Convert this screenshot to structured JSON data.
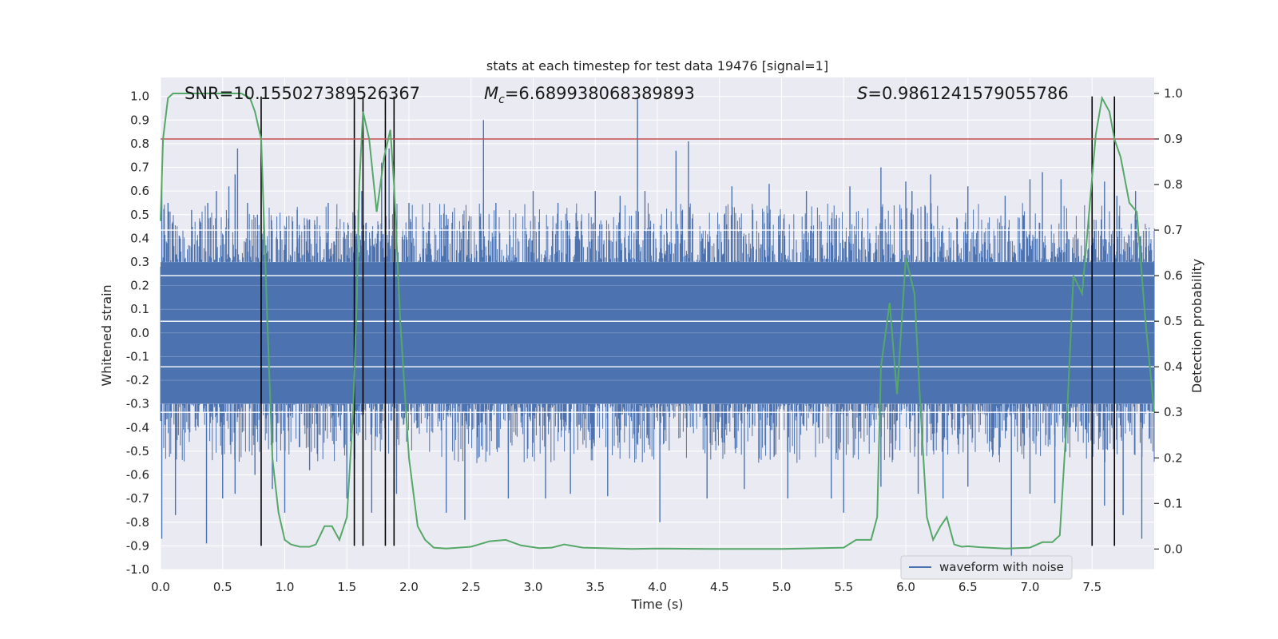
{
  "chart_data": {
    "type": "line",
    "title": "stats at each timestep for test data 19476 [signal=1]",
    "xlabel": "Time (s)",
    "ylabel": "Whitened strain",
    "y2label": "Detection probability",
    "xlim": [
      0.0,
      8.0
    ],
    "ylim": [
      -1.0,
      1.08
    ],
    "y2lim": [
      -0.045,
      1.035
    ],
    "x_ticks": [
      0.0,
      0.5,
      1.0,
      1.5,
      2.0,
      2.5,
      3.0,
      3.5,
      4.0,
      4.5,
      5.0,
      5.5,
      6.0,
      6.5,
      7.0,
      7.5
    ],
    "x_tick_labels": [
      "0.0",
      "0.5",
      "1.0",
      "1.5",
      "2.0",
      "2.5",
      "3.0",
      "3.5",
      "4.0",
      "4.5",
      "5.0",
      "5.5",
      "6.0",
      "6.5",
      "7.0",
      "7.5"
    ],
    "y_ticks": [
      -1.0,
      -0.9,
      -0.8,
      -0.7,
      -0.6,
      -0.5,
      -0.4,
      -0.3,
      -0.2,
      -0.1,
      0.0,
      0.1,
      0.2,
      0.3,
      0.4,
      0.5,
      0.6,
      0.7,
      0.8,
      0.9,
      1.0
    ],
    "y_tick_labels": [
      "-1.0",
      "-0.9",
      "-0.8",
      "-0.7",
      "-0.6",
      "-0.5",
      "-0.4",
      "-0.3",
      "-0.2",
      "-0.1",
      "0.0",
      "0.1",
      "0.2",
      "0.3",
      "0.4",
      "0.5",
      "0.6",
      "0.7",
      "0.8",
      "0.9",
      "1.0"
    ],
    "y2_ticks": [
      0.0,
      0.1,
      0.2,
      0.3,
      0.4,
      0.5,
      0.6,
      0.7,
      0.8,
      0.9,
      1.0
    ],
    "y2_tick_labels": [
      "0.0",
      "0.1",
      "0.2",
      "0.3",
      "0.4",
      "0.5",
      "0.6",
      "0.7",
      "0.8",
      "0.9",
      "1.0"
    ],
    "threshold": {
      "value": 0.9,
      "color": "#c44e52"
    },
    "annotations": {
      "snr": "SNR=10.155027389526367",
      "mc_prefix": "M",
      "mc_sub": "c",
      "mc_value": "=6.689938068389893",
      "s_prefix": "S",
      "s_value": "=0.9861241579055786"
    },
    "event_lines": [
      0.81,
      1.56,
      1.63,
      1.81,
      1.88,
      7.5,
      7.68
    ],
    "waveform": {
      "name": "waveform with noise",
      "color": "#4c72b0",
      "envelope_upper": 0.42,
      "envelope_lower": -0.42,
      "peaks": [
        [
          0.01,
          0.64
        ],
        [
          0.06,
          0.55
        ],
        [
          0.25,
          0.52
        ],
        [
          0.38,
          0.55
        ],
        [
          0.45,
          0.6
        ],
        [
          0.55,
          0.62
        ],
        [
          0.6,
          0.67
        ],
        [
          0.62,
          0.78
        ],
        [
          0.7,
          0.55
        ],
        [
          0.78,
          0.5
        ],
        [
          1.1,
          0.52
        ],
        [
          1.2,
          0.48
        ],
        [
          1.35,
          0.55
        ],
        [
          1.62,
          0.6
        ],
        [
          1.78,
          0.72
        ],
        [
          1.84,
          0.78
        ],
        [
          2.0,
          0.55
        ],
        [
          2.3,
          0.5
        ],
        [
          2.6,
          0.9
        ],
        [
          2.7,
          0.55
        ],
        [
          3.0,
          0.6
        ],
        [
          3.2,
          0.55
        ],
        [
          3.5,
          0.6
        ],
        [
          3.7,
          0.58
        ],
        [
          3.84,
          0.99
        ],
        [
          3.9,
          0.6
        ],
        [
          4.15,
          0.77
        ],
        [
          4.25,
          0.81
        ],
        [
          4.6,
          0.62
        ],
        [
          4.9,
          0.63
        ],
        [
          5.2,
          0.6
        ],
        [
          5.55,
          0.62
        ],
        [
          5.8,
          0.7
        ],
        [
          6.0,
          0.64
        ],
        [
          6.05,
          0.6
        ],
        [
          6.2,
          0.67
        ],
        [
          6.5,
          0.62
        ],
        [
          6.8,
          0.58
        ],
        [
          7.0,
          0.65
        ],
        [
          7.1,
          0.68
        ],
        [
          7.25,
          0.65
        ],
        [
          7.5,
          0.67
        ],
        [
          7.6,
          0.64
        ],
        [
          7.7,
          0.58
        ],
        [
          7.85,
          0.6
        ]
      ],
      "troughs": [
        [
          0.01,
          -0.87
        ],
        [
          0.12,
          -0.77
        ],
        [
          0.37,
          -0.89
        ],
        [
          0.5,
          -0.7
        ],
        [
          0.6,
          -0.68
        ],
        [
          0.76,
          -0.6
        ],
        [
          0.9,
          -0.66
        ],
        [
          1.0,
          -0.76
        ],
        [
          1.2,
          -0.58
        ],
        [
          1.5,
          -0.7
        ],
        [
          1.7,
          -0.76
        ],
        [
          1.9,
          -0.68
        ],
        [
          2.3,
          -0.76
        ],
        [
          2.45,
          -0.79
        ],
        [
          2.8,
          -0.7
        ],
        [
          3.1,
          -0.7
        ],
        [
          3.3,
          -0.68
        ],
        [
          3.6,
          -0.69
        ],
        [
          4.02,
          -0.8
        ],
        [
          4.4,
          -0.7
        ],
        [
          4.7,
          -0.66
        ],
        [
          5.05,
          -0.7
        ],
        [
          5.4,
          -0.7
        ],
        [
          5.5,
          -0.76
        ],
        [
          5.8,
          -0.65
        ],
        [
          6.1,
          -0.68
        ],
        [
          6.3,
          -0.7
        ],
        [
          6.5,
          -0.65
        ],
        [
          6.85,
          -0.96
        ],
        [
          7.0,
          -0.68
        ],
        [
          7.2,
          -0.72
        ],
        [
          7.6,
          -0.73
        ],
        [
          7.75,
          -0.77
        ],
        [
          7.9,
          -0.87
        ]
      ]
    },
    "detection_probability": {
      "color": "#55a868",
      "x": [
        0.0,
        0.02,
        0.06,
        0.1,
        0.2,
        0.3,
        0.5,
        0.65,
        0.72,
        0.76,
        0.81,
        0.86,
        0.9,
        0.95,
        1.0,
        1.05,
        1.12,
        1.2,
        1.25,
        1.32,
        1.38,
        1.44,
        1.5,
        1.55,
        1.58,
        1.6,
        1.63,
        1.68,
        1.74,
        1.8,
        1.85,
        1.88,
        1.93,
        2.0,
        2.07,
        2.13,
        2.2,
        2.3,
        2.5,
        2.65,
        2.78,
        2.9,
        3.05,
        3.15,
        3.25,
        3.4,
        3.8,
        4.0,
        4.5,
        5.0,
        5.5,
        5.6,
        5.65,
        5.72,
        5.77,
        5.8,
        5.87,
        5.93,
        6.0,
        6.07,
        6.12,
        6.17,
        6.22,
        6.28,
        6.33,
        6.39,
        6.45,
        6.5,
        6.6,
        6.8,
        7.0,
        7.1,
        7.18,
        7.24,
        7.3,
        7.35,
        7.42,
        7.47,
        7.53,
        7.58,
        7.64,
        7.68,
        7.73,
        7.8,
        7.86,
        7.93,
        8.0
      ],
      "y": [
        0.72,
        0.9,
        0.99,
        1.0,
        1.0,
        1.0,
        1.0,
        1.0,
        0.99,
        0.96,
        0.9,
        0.5,
        0.2,
        0.08,
        0.02,
        0.01,
        0.005,
        0.005,
        0.01,
        0.05,
        0.05,
        0.02,
        0.07,
        0.3,
        0.55,
        0.8,
        0.96,
        0.9,
        0.74,
        0.86,
        0.92,
        0.8,
        0.5,
        0.2,
        0.05,
        0.02,
        0.003,
        0.001,
        0.005,
        0.017,
        0.02,
        0.008,
        0.002,
        0.003,
        0.01,
        0.003,
        0.0,
        0.001,
        0.0,
        0.0,
        0.003,
        0.02,
        0.02,
        0.02,
        0.07,
        0.4,
        0.54,
        0.34,
        0.64,
        0.56,
        0.3,
        0.07,
        0.02,
        0.05,
        0.07,
        0.01,
        0.005,
        0.006,
        0.004,
        0.001,
        0.003,
        0.015,
        0.015,
        0.03,
        0.3,
        0.6,
        0.56,
        0.72,
        0.91,
        0.99,
        0.96,
        0.9,
        0.86,
        0.76,
        0.74,
        0.5,
        0.3
      ]
    },
    "legend": {
      "label": "waveform with noise",
      "position": "lower-right"
    }
  }
}
